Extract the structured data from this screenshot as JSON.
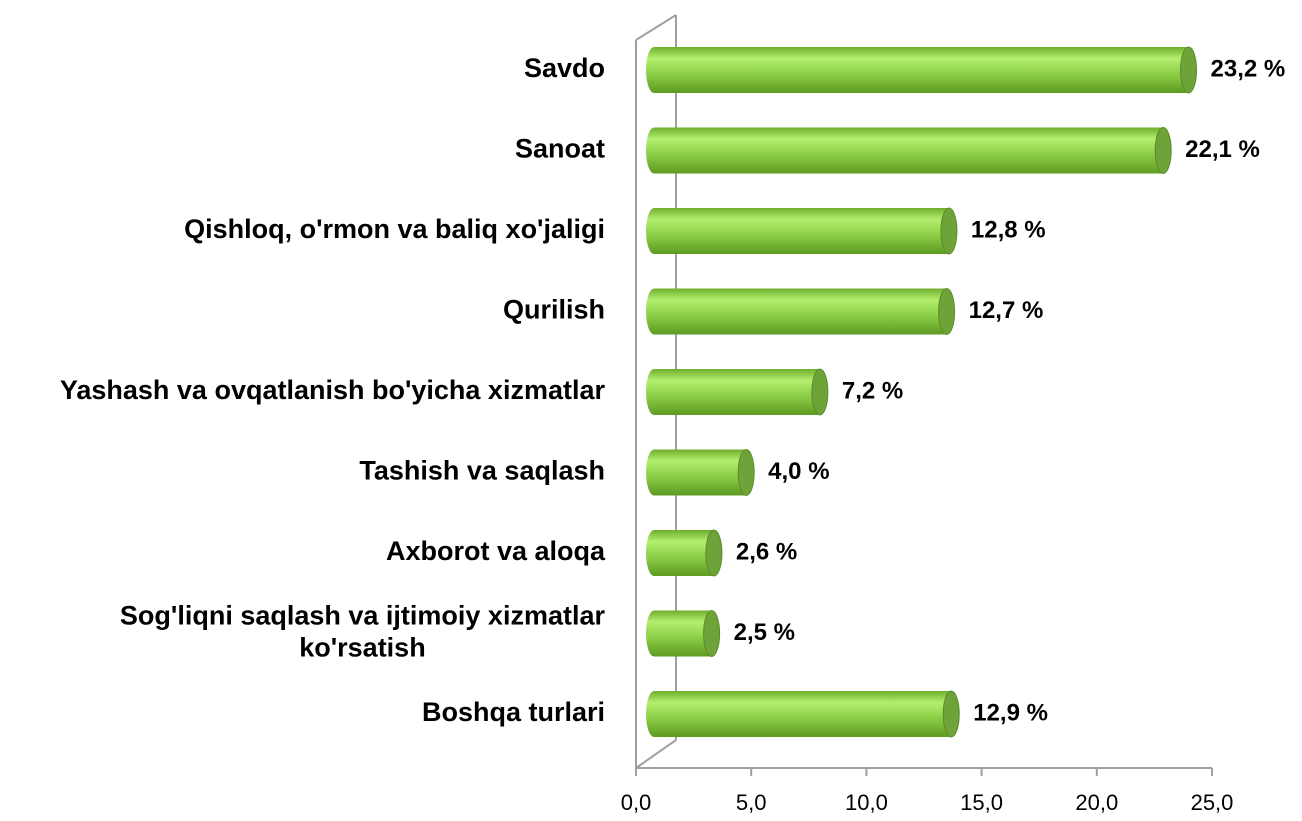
{
  "chart_data": {
    "type": "bar3d-horizontal",
    "categories": [
      "Savdo",
      "Sanoat",
      "Qishloq, o'rmon va baliq xo'jaligi",
      "Qurilish",
      "Yashash va ovqatlanish bo'yicha xizmatlar",
      "Tashish va saqlash",
      "Axborot va aloqa",
      "Sog'liqni saqlash va ijtimoiy xizmatlar ko'rsatish",
      "Boshqa turlari"
    ],
    "values": [
      23.2,
      22.1,
      12.8,
      12.7,
      7.2,
      4.0,
      2.6,
      2.5,
      12.9
    ],
    "value_labels": [
      "23,2 %",
      "22,1 %",
      "12,8 %",
      "12,7 %",
      "7,2 %",
      "4,0 %",
      "2,6 %",
      "2,5 %",
      "12,9 %"
    ],
    "color": "#8fd24a",
    "xlim": [
      0,
      25
    ],
    "xticks": [
      {
        "value": 0,
        "label": "0,0"
      },
      {
        "value": 5,
        "label": "5,0"
      },
      {
        "value": 10,
        "label": "10,0"
      },
      {
        "value": 15,
        "label": "15,0"
      },
      {
        "value": 20,
        "label": "20,0"
      },
      {
        "value": 25,
        "label": "25,0"
      }
    ]
  }
}
